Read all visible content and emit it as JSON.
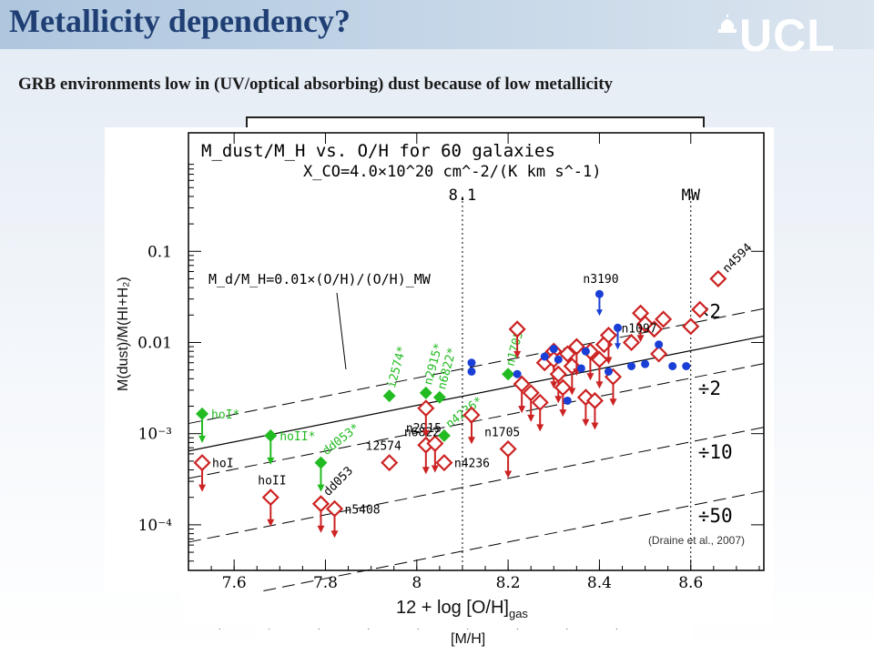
{
  "slide": {
    "title": "Metallicity dependency?",
    "logo_text": "UCL",
    "subtitle": "GRB environments low in (UV/optical absorbing) dust because of low metallicity",
    "bottom_label": "[M/H]"
  },
  "chart_data": {
    "type": "scatter",
    "plot_title": "M_dust/M_H vs. O/H for 60 galaxies",
    "plot_subtitle": "X_CO=4.0×10^20 cm^-2/(K km s^-1)",
    "xlabel": "12 + log [O/H]",
    "xlabel_sub": "gas",
    "ylabel": "M(dust)/M(HI+H₂)",
    "credit": "(Draine et al., 2007)",
    "xlim": [
      7.5,
      8.76
    ],
    "ylim_log10": [
      -4.5,
      0.3
    ],
    "log_y": true,
    "xticks": [
      "7.6",
      "7.8",
      "8",
      "8.2",
      "8.4",
      "8.6"
    ],
    "ytick_labels": [
      "0.1",
      "0.01",
      "10⁻³",
      "10⁻⁴"
    ],
    "ytick_values": [
      0.1,
      0.01,
      0.001,
      0.0001
    ],
    "vlines": [
      {
        "x": 8.1,
        "label": "8.1"
      },
      {
        "x": 8.6,
        "label": "MW"
      }
    ],
    "relation_label": "M_d/M_H=0.01×(O/H)/(O/H)_MW",
    "band_labels": [
      {
        "factor": 2,
        "label": "×2"
      },
      {
        "factor": 0.5,
        "label": "÷2"
      },
      {
        "factor": 0.1,
        "label": "÷10"
      },
      {
        "factor": 0.02,
        "label": "÷50"
      }
    ],
    "colors": {
      "green": "#22bb22",
      "red": "#cc2222",
      "blue": "#1a3fd6"
    },
    "series": [
      {
        "marker": "green-diamond",
        "points": [
          {
            "x": 7.53,
            "y": 0.00165,
            "label": "hoI*",
            "upper": true
          },
          {
            "x": 7.68,
            "y": 0.00095,
            "label": "hoII*",
            "upper": true
          },
          {
            "x": 7.79,
            "y": 0.00048,
            "label": "dd053*",
            "upper": true
          },
          {
            "x": 7.94,
            "y": 0.0026,
            "label": "i2574*",
            "upper": false
          },
          {
            "x": 8.02,
            "y": 0.0028,
            "label": "n2915*",
            "upper": false
          },
          {
            "x": 8.05,
            "y": 0.0025,
            "label": "n6822*",
            "upper": false
          },
          {
            "x": 8.06,
            "y": 0.00095,
            "label": "n4236*",
            "upper": false
          },
          {
            "x": 8.2,
            "y": 0.0045,
            "label": "n1705*",
            "upper": false
          }
        ]
      },
      {
        "marker": "red-open-diamond",
        "points": [
          {
            "x": 7.53,
            "y": 0.00048,
            "label": "hoI",
            "upper": true
          },
          {
            "x": 7.68,
            "y": 0.0002,
            "label": "hoII",
            "upper": true
          },
          {
            "x": 7.79,
            "y": 0.00017,
            "label": "dd053",
            "upper": true
          },
          {
            "x": 7.82,
            "y": 0.00015,
            "label": "n5408",
            "upper": true
          },
          {
            "x": 7.94,
            "y": 0.00048,
            "label": "i2574",
            "upper": false
          },
          {
            "x": 8.02,
            "y": 0.00075,
            "label": "n2915",
            "upper": true
          },
          {
            "x": 8.04,
            "y": 0.00078,
            "label": "n6822",
            "upper": true
          },
          {
            "x": 8.06,
            "y": 0.00048,
            "label": "n4236",
            "upper": false
          },
          {
            "x": 8.2,
            "y": 0.00068,
            "label": "n1705",
            "upper": true
          },
          {
            "x": 8.66,
            "y": 0.05,
            "label": "n4594",
            "upper": false
          },
          {
            "x": 8.02,
            "y": 0.0019,
            "label": "",
            "upper": true
          },
          {
            "x": 8.12,
            "y": 0.0016,
            "label": "",
            "upper": true
          },
          {
            "x": 8.22,
            "y": 0.014,
            "label": "",
            "upper": true
          },
          {
            "x": 8.23,
            "y": 0.0035,
            "label": "",
            "upper": true
          },
          {
            "x": 8.25,
            "y": 0.0028,
            "label": "",
            "upper": true
          },
          {
            "x": 8.27,
            "y": 0.0022,
            "label": "",
            "upper": true
          },
          {
            "x": 8.28,
            "y": 0.006,
            "label": "",
            "upper": false
          },
          {
            "x": 8.3,
            "y": 0.008,
            "label": "",
            "upper": true
          },
          {
            "x": 8.3,
            "y": 0.0065,
            "label": "",
            "upper": true
          },
          {
            "x": 8.31,
            "y": 0.0045,
            "label": "",
            "upper": true
          },
          {
            "x": 8.32,
            "y": 0.0032,
            "label": "",
            "upper": true
          },
          {
            "x": 8.33,
            "y": 0.0075,
            "label": "",
            "upper": false
          },
          {
            "x": 8.34,
            "y": 0.0055,
            "label": "",
            "upper": true
          },
          {
            "x": 8.35,
            "y": 0.009,
            "label": "",
            "upper": true
          },
          {
            "x": 8.37,
            "y": 0.0025,
            "label": "",
            "upper": true
          },
          {
            "x": 8.38,
            "y": 0.008,
            "label": "",
            "upper": true
          },
          {
            "x": 8.39,
            "y": 0.0023,
            "label": "",
            "upper": true
          },
          {
            "x": 8.4,
            "y": 0.0065,
            "label": "",
            "upper": true
          },
          {
            "x": 8.41,
            "y": 0.0095,
            "label": "",
            "upper": false
          },
          {
            "x": 8.42,
            "y": 0.012,
            "label": "",
            "upper": true
          },
          {
            "x": 8.43,
            "y": 0.0042,
            "label": "",
            "upper": true
          },
          {
            "x": 8.47,
            "y": 0.01,
            "label": "",
            "upper": false
          },
          {
            "x": 8.49,
            "y": 0.021,
            "label": "",
            "upper": true
          },
          {
            "x": 8.5,
            "y": 0.016,
            "label": "",
            "upper": false
          },
          {
            "x": 8.52,
            "y": 0.014,
            "label": "",
            "upper": false
          },
          {
            "x": 8.53,
            "y": 0.0075,
            "label": "",
            "upper": false
          },
          {
            "x": 8.54,
            "y": 0.018,
            "label": "",
            "upper": false
          },
          {
            "x": 8.6,
            "y": 0.015,
            "label": "",
            "upper": false
          },
          {
            "x": 8.62,
            "y": 0.023,
            "label": "",
            "upper": false
          }
        ]
      },
      {
        "marker": "blue-dot",
        "points": [
          {
            "x": 8.4,
            "y": 0.034,
            "label": "n3190",
            "upper": true
          },
          {
            "x": 8.44,
            "y": 0.0145,
            "label": "n1097",
            "upper": true
          },
          {
            "x": 8.12,
            "y": 0.006,
            "label": "",
            "upper": false
          },
          {
            "x": 8.12,
            "y": 0.0048,
            "label": "",
            "upper": false
          },
          {
            "x": 8.22,
            "y": 0.0045,
            "label": "",
            "upper": false
          },
          {
            "x": 8.28,
            "y": 0.007,
            "label": "",
            "upper": false
          },
          {
            "x": 8.3,
            "y": 0.0085,
            "label": "",
            "upper": false
          },
          {
            "x": 8.31,
            "y": 0.0065,
            "label": "",
            "upper": false
          },
          {
            "x": 8.33,
            "y": 0.0023,
            "label": "",
            "upper": false
          },
          {
            "x": 8.36,
            "y": 0.0052,
            "label": "",
            "upper": false
          },
          {
            "x": 8.37,
            "y": 0.008,
            "label": "",
            "upper": false
          },
          {
            "x": 8.42,
            "y": 0.0048,
            "label": "",
            "upper": false
          },
          {
            "x": 8.47,
            "y": 0.0055,
            "label": "",
            "upper": false
          },
          {
            "x": 8.5,
            "y": 0.0058,
            "label": "",
            "upper": false
          },
          {
            "x": 8.53,
            "y": 0.0095,
            "label": "",
            "upper": false
          },
          {
            "x": 8.56,
            "y": 0.0055,
            "label": "",
            "upper": false
          },
          {
            "x": 8.59,
            "y": 0.0055,
            "label": "",
            "upper": false
          }
        ]
      }
    ]
  }
}
